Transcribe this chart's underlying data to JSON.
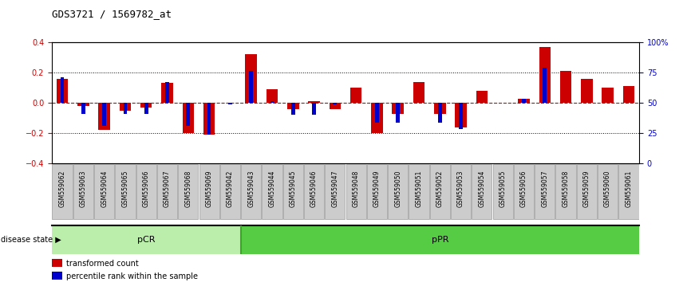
{
  "title": "GDS3721 / 1569782_at",
  "samples": [
    "GSM559062",
    "GSM559063",
    "GSM559064",
    "GSM559065",
    "GSM559066",
    "GSM559067",
    "GSM559068",
    "GSM559069",
    "GSM559042",
    "GSM559043",
    "GSM559044",
    "GSM559045",
    "GSM559046",
    "GSM559047",
    "GSM559048",
    "GSM559049",
    "GSM559050",
    "GSM559051",
    "GSM559052",
    "GSM559053",
    "GSM559054",
    "GSM559055",
    "GSM559056",
    "GSM559057",
    "GSM559058",
    "GSM559059",
    "GSM559060",
    "GSM559061"
  ],
  "red_values": [
    0.16,
    -0.02,
    -0.18,
    -0.05,
    -0.03,
    0.13,
    -0.2,
    -0.21,
    0.0,
    0.32,
    0.09,
    -0.04,
    0.01,
    -0.04,
    0.1,
    -0.2,
    -0.07,
    0.14,
    -0.07,
    -0.16,
    0.08,
    0.0,
    0.03,
    0.37,
    0.21,
    0.16,
    0.1,
    0.11
  ],
  "blue_values": [
    0.17,
    -0.07,
    -0.15,
    -0.07,
    -0.07,
    0.14,
    -0.15,
    -0.21,
    -0.01,
    0.21,
    0.01,
    -0.08,
    -0.08,
    -0.01,
    0.0,
    -0.13,
    -0.13,
    0.0,
    -0.13,
    -0.17,
    0.0,
    0.0,
    0.03,
    0.23,
    0.0,
    0.0,
    0.0,
    0.0
  ],
  "pCR_count": 9,
  "pPR_count": 19,
  "ylim": [
    -0.4,
    0.4
  ],
  "y2lim": [
    0,
    100
  ],
  "yticks": [
    -0.4,
    -0.2,
    0.0,
    0.2,
    0.4
  ],
  "y2ticks": [
    0,
    25,
    50,
    75,
    100
  ],
  "red_color": "#CC0000",
  "blue_color": "#0000CC",
  "pcr_color_light": "#BBEEAA",
  "ppr_color_dark": "#55CC44",
  "pcr_border": "#33AA22",
  "legend_red": "transformed count",
  "legend_blue": "percentile rank within the sample",
  "y2label_color": "#0000CC",
  "tick_fontsize": 7,
  "title_fontsize": 9
}
